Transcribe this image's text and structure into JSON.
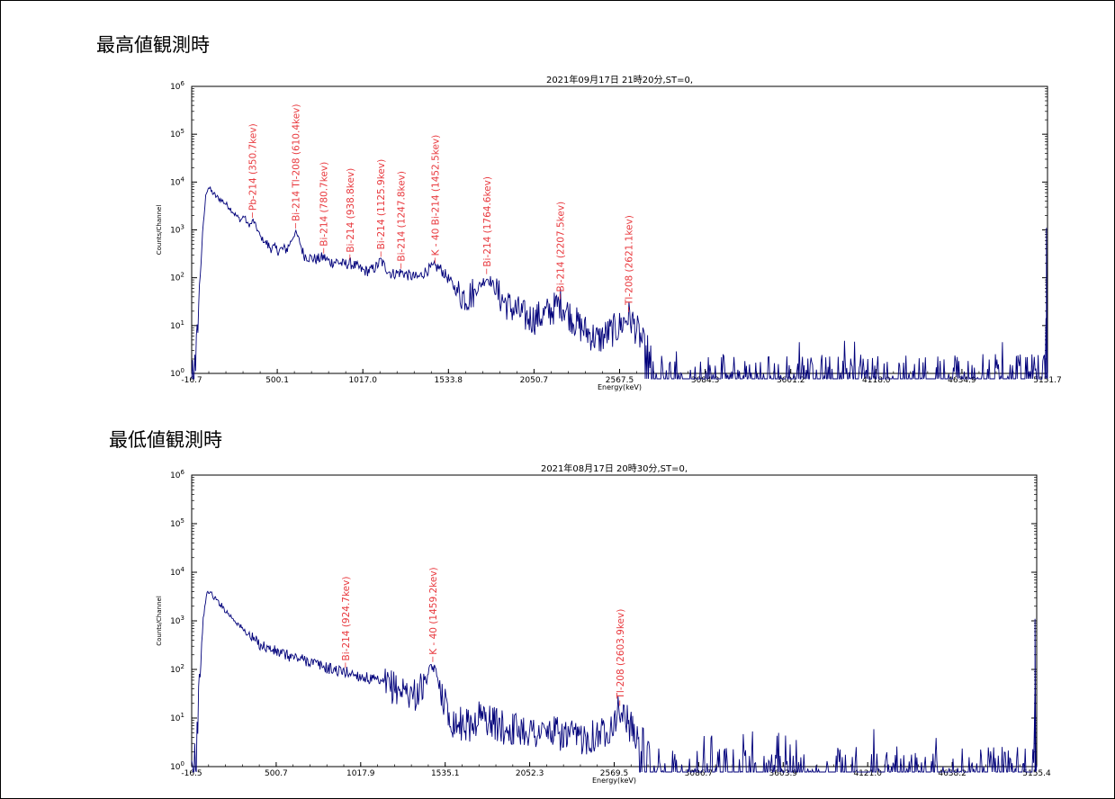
{
  "section_titles": [
    "最高値観測時",
    "最低値観測時"
  ],
  "chart_data": [
    {
      "type": "line",
      "title": "2021年09月17日  21時20分,ST=0,",
      "xlabel": "Energy(keV)",
      "ylabel": "Counts/Channel",
      "xlim": [
        -16.7,
        5151.7
      ],
      "y_scale": "log",
      "ylim": [
        1,
        1000000
      ],
      "x_ticks": [
        "-16.7",
        "500.1",
        "1017.0",
        "1533.8",
        "2050.7",
        "2567.5",
        "3084.3",
        "3601.2",
        "4118.0",
        "4634.9",
        "5151.7"
      ],
      "y_ticks": [
        {
          "base": "10",
          "exp": "0"
        },
        {
          "base": "10",
          "exp": "1"
        },
        {
          "base": "10",
          "exp": "2"
        },
        {
          "base": "10",
          "exp": "3"
        },
        {
          "base": "10",
          "exp": "4"
        },
        {
          "base": "10",
          "exp": "5"
        },
        {
          "base": "10",
          "exp": "6"
        }
      ],
      "grid": false,
      "line_color": "#00007a",
      "label_color": "#e8383d",
      "peak_labels": [
        {
          "text": "Pb-214 (350.7kev)",
          "x": 350.7,
          "y": 1500
        },
        {
          "text": "Bi-214 Tl-208 (610.4kev)",
          "x": 610.4,
          "y": 900
        },
        {
          "text": "Bi-214 (780.7kev)",
          "x": 780.7,
          "y": 270
        },
        {
          "text": "Bi-214 (938.8kev)",
          "x": 938.8,
          "y": 200
        },
        {
          "text": "Bi-214 (1125.9kev)",
          "x": 1125.9,
          "y": 230
        },
        {
          "text": "Bi-214 (1247.8kev)",
          "x": 1247.8,
          "y": 130
        },
        {
          "text": "K - 40 Bi-214 (1452.5kev)",
          "x": 1452.5,
          "y": 170
        },
        {
          "text": "Bi-214 (1764.6kev)",
          "x": 1764.6,
          "y": 100
        },
        {
          "text": "Bi-214 (2207.5kev)",
          "x": 2207.5,
          "y": 30
        },
        {
          "text": "Tl-208 (2621.1kev)",
          "x": 2621.1,
          "y": 16
        }
      ],
      "spectrum": [
        [
          -16.7,
          0.5
        ],
        [
          0,
          1
        ],
        [
          15,
          5
        ],
        [
          30,
          60
        ],
        [
          50,
          900
        ],
        [
          70,
          6000
        ],
        [
          85,
          8000
        ],
        [
          100,
          6500
        ],
        [
          130,
          5000
        ],
        [
          170,
          4000
        ],
        [
          210,
          3000
        ],
        [
          250,
          2000
        ],
        [
          280,
          1600
        ],
        [
          300,
          2000
        ],
        [
          320,
          1300
        ],
        [
          340,
          1300
        ],
        [
          355,
          1600
        ],
        [
          370,
          1200
        ],
        [
          400,
          700
        ],
        [
          450,
          450
        ],
        [
          500,
          380
        ],
        [
          560,
          400
        ],
        [
          590,
          650
        ],
        [
          610,
          900
        ],
        [
          630,
          650
        ],
        [
          660,
          300
        ],
        [
          700,
          260
        ],
        [
          740,
          240
        ],
        [
          780,
          270
        ],
        [
          820,
          210
        ],
        [
          860,
          220
        ],
        [
          900,
          190
        ],
        [
          940,
          200
        ],
        [
          980,
          170
        ],
        [
          1020,
          140
        ],
        [
          1060,
          140
        ],
        [
          1100,
          170
        ],
        [
          1125,
          230
        ],
        [
          1150,
          170
        ],
        [
          1190,
          120
        ],
        [
          1250,
          130
        ],
        [
          1300,
          110
        ],
        [
          1350,
          100
        ],
        [
          1400,
          140
        ],
        [
          1450,
          170
        ],
        [
          1480,
          160
        ],
        [
          1520,
          110
        ],
        [
          1560,
          70
        ],
        [
          1600,
          45
        ],
        [
          1650,
          40
        ],
        [
          1700,
          55
        ],
        [
          1740,
          80
        ],
        [
          1765,
          100
        ],
        [
          1790,
          85
        ],
        [
          1830,
          45
        ],
        [
          1900,
          25
        ],
        [
          1950,
          20
        ],
        [
          2000,
          15
        ],
        [
          2050,
          14
        ],
        [
          2100,
          16
        ],
        [
          2150,
          20
        ],
        [
          2190,
          26
        ],
        [
          2207,
          30
        ],
        [
          2230,
          25
        ],
        [
          2270,
          16
        ],
        [
          2320,
          10
        ],
        [
          2380,
          7
        ],
        [
          2440,
          5
        ],
        [
          2500,
          7
        ],
        [
          2560,
          9
        ],
        [
          2600,
          13
        ],
        [
          2621,
          16
        ],
        [
          2650,
          11
        ],
        [
          2700,
          5
        ],
        [
          2740,
          2
        ],
        [
          2780,
          1
        ],
        [
          2850,
          0.8
        ],
        [
          3100,
          0.8
        ],
        [
          3600,
          0.8
        ],
        [
          4118,
          0.8
        ],
        [
          4635,
          0.8
        ],
        [
          5100,
          0.8
        ],
        [
          5140,
          0.8
        ],
        [
          5145,
          1000
        ],
        [
          5148,
          0.8
        ],
        [
          5151.7,
          0.8
        ]
      ]
    },
    {
      "type": "line",
      "title": "2021年08月17日  20時30分,ST=0,",
      "xlabel": "Energy(keV)",
      "ylabel": "Counts/Channel",
      "xlim": [
        -16.5,
        5155.4
      ],
      "y_scale": "log",
      "ylim": [
        1,
        1000000
      ],
      "x_ticks": [
        "-16.5",
        "500.7",
        "1017.9",
        "1535.1",
        "2052.3",
        "2569.5",
        "3086.7",
        "3603.9",
        "4121.0",
        "4638.2",
        "5155.4"
      ],
      "y_ticks": [
        {
          "base": "10",
          "exp": "0"
        },
        {
          "base": "10",
          "exp": "1"
        },
        {
          "base": "10",
          "exp": "2"
        },
        {
          "base": "10",
          "exp": "3"
        },
        {
          "base": "10",
          "exp": "4"
        },
        {
          "base": "10",
          "exp": "5"
        },
        {
          "base": "10",
          "exp": "6"
        }
      ],
      "grid": false,
      "line_color": "#00007a",
      "label_color": "#e8383d",
      "peak_labels": [
        {
          "text": "Bi-214 (924.7kev)",
          "x": 924.7,
          "y": 90
        },
        {
          "text": "K - 40 (1459.2kev)",
          "x": 1459.2,
          "y": 120
        },
        {
          "text": "Tl-208 (2603.9kev)",
          "x": 2603.9,
          "y": 15
        }
      ],
      "spectrum": [
        [
          -16.5,
          0.5
        ],
        [
          0,
          1
        ],
        [
          15,
          4
        ],
        [
          35,
          80
        ],
        [
          55,
          1200
        ],
        [
          75,
          3500
        ],
        [
          90,
          4200
        ],
        [
          110,
          3300
        ],
        [
          150,
          2400
        ],
        [
          200,
          1500
        ],
        [
          250,
          1000
        ],
        [
          300,
          650
        ],
        [
          350,
          450
        ],
        [
          400,
          330
        ],
        [
          500,
          230
        ],
        [
          600,
          180
        ],
        [
          700,
          150
        ],
        [
          800,
          110
        ],
        [
          900,
          90
        ],
        [
          950,
          85
        ],
        [
          1000,
          75
        ],
        [
          1100,
          60
        ],
        [
          1200,
          45
        ],
        [
          1300,
          35
        ],
        [
          1350,
          30
        ],
        [
          1400,
          45
        ],
        [
          1440,
          90
        ],
        [
          1459,
          120
        ],
        [
          1480,
          80
        ],
        [
          1520,
          30
        ],
        [
          1560,
          10
        ],
        [
          1600,
          8
        ],
        [
          1700,
          7
        ],
        [
          1750,
          12
        ],
        [
          1800,
          9
        ],
        [
          1900,
          6
        ],
        [
          2000,
          6
        ],
        [
          2100,
          5
        ],
        [
          2200,
          5
        ],
        [
          2300,
          4
        ],
        [
          2400,
          4
        ],
        [
          2500,
          5
        ],
        [
          2560,
          8
        ],
        [
          2603,
          15
        ],
        [
          2640,
          10
        ],
        [
          2700,
          4
        ],
        [
          2750,
          2
        ],
        [
          2790,
          1
        ],
        [
          2850,
          0.8
        ],
        [
          3100,
          0.8
        ],
        [
          3600,
          0.8
        ],
        [
          4121,
          0.8
        ],
        [
          4638,
          0.8
        ],
        [
          5100,
          0.8
        ],
        [
          5140,
          0.8
        ],
        [
          5145,
          1000
        ],
        [
          5148,
          0.8
        ],
        [
          5155.4,
          0.8
        ]
      ]
    }
  ]
}
